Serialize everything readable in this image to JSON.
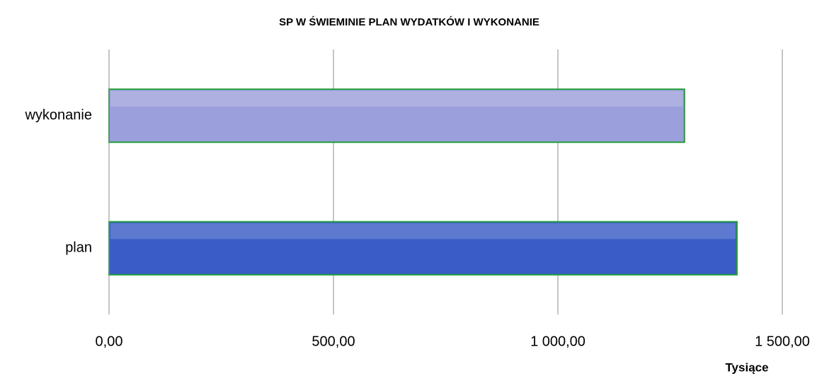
{
  "chart_data": {
    "type": "bar",
    "orientation": "horizontal",
    "title": "SP W ŚWIEMINIE PLAN WYDATKÓW I WYKONANIE",
    "categories": [
      "plan",
      "wykonanie"
    ],
    "values": [
      1399,
      1282
    ],
    "colors": [
      "#3a5cc6",
      "#9b9fdb"
    ],
    "edge_color": "#1e9e3a",
    "xlabel": "Tysiące",
    "xlim": [
      0,
      1500
    ],
    "xticks": [
      {
        "value": 0,
        "label": "0,00"
      },
      {
        "value": 500,
        "label": "500,00"
      },
      {
        "value": 1000,
        "label": "1 000,00"
      },
      {
        "value": 1500,
        "label": "1 500,00"
      }
    ],
    "grid": true
  }
}
